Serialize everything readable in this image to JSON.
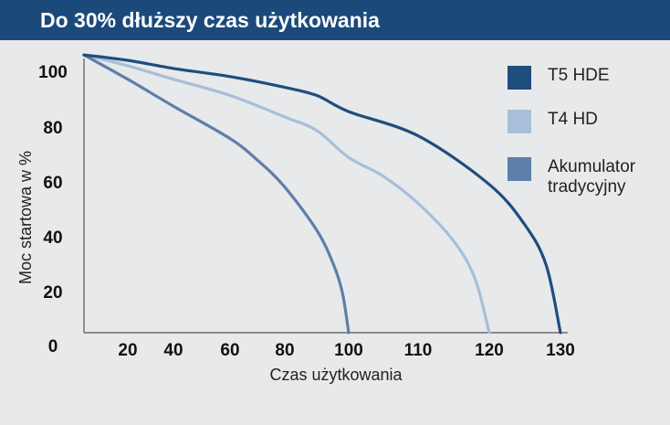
{
  "title": "Do 30% dłuższy czas użytkowania",
  "chart_data": {
    "type": "line",
    "xlabel": "Czas użytkowania",
    "ylabel": "Moc startowa w %",
    "xticks": [
      "20",
      "40",
      "60",
      "80",
      "100",
      "110",
      "120",
      "130"
    ],
    "yticks": [
      "100",
      "80",
      "60",
      "40",
      "20",
      "0"
    ],
    "grid": false,
    "legend_position": "right",
    "series": [
      {
        "name": "T5 HDE",
        "color": "#1f4e7d",
        "x": [
          0,
          20,
          40,
          60,
          80,
          90,
          100,
          110,
          120,
          125,
          128,
          130
        ],
        "y": [
          103,
          101,
          98,
          95,
          91,
          88,
          82,
          73,
          55,
          40,
          25,
          0
        ]
      },
      {
        "name": "T4 HD",
        "color": "#a7bfd8",
        "x": [
          0,
          20,
          40,
          60,
          80,
          90,
          100,
          105,
          110,
          115,
          118,
          120
        ],
        "y": [
          103,
          99,
          94,
          88,
          80,
          75,
          65,
          58,
          48,
          34,
          20,
          0
        ]
      },
      {
        "name": "Akumulator tradycyjny",
        "color": "#5d7fa9",
        "x": [
          0,
          20,
          40,
          60,
          70,
          80,
          90,
          95,
          98,
          100
        ],
        "y": [
          103,
          94,
          84,
          72,
          64,
          54,
          38,
          26,
          15,
          0
        ]
      }
    ]
  },
  "legend": [
    {
      "label": "T5 HDE",
      "color": "#1f4e7d"
    },
    {
      "label": "T4 HD",
      "color": "#a7bfd8"
    },
    {
      "label": "Akumulator tradycyjny",
      "color": "#5d7fa9"
    }
  ]
}
